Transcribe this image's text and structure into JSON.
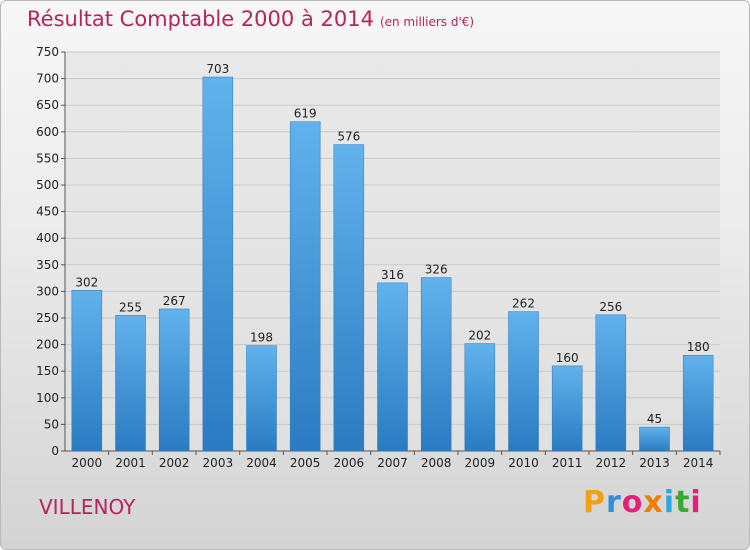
{
  "title": "Résultat Comptable 2000 à 2014",
  "subtitle": "(en milliers d'€)",
  "place": "VILLENOY",
  "logo": {
    "text": "Proxiti",
    "letters": [
      "P",
      "r",
      "o",
      "x",
      "i",
      "t",
      "i"
    ],
    "colors": [
      "#f5a011",
      "#2f8fd8",
      "#e5207a",
      "#f07d00",
      "#2aa8e0",
      "#39a935",
      "#e5207a"
    ]
  },
  "colors": {
    "bar": "#3f97d9",
    "barTop": "#61b2ec",
    "barBottom": "#2a7bc2",
    "title": "#b5245a"
  },
  "chart_data": {
    "type": "bar",
    "categories": [
      "2000",
      "2001",
      "2002",
      "2003",
      "2004",
      "2005",
      "2006",
      "2007",
      "2008",
      "2009",
      "2010",
      "2011",
      "2012",
      "2013",
      "2014"
    ],
    "values": [
      302,
      255,
      267,
      703,
      198,
      619,
      576,
      316,
      326,
      202,
      262,
      160,
      256,
      45,
      180
    ],
    "ylim": [
      0,
      750
    ],
    "yticks": [
      0,
      50,
      100,
      150,
      200,
      250,
      300,
      350,
      400,
      450,
      500,
      550,
      600,
      650,
      700,
      750
    ],
    "grid": true,
    "xlabel": "",
    "ylabel": ""
  }
}
